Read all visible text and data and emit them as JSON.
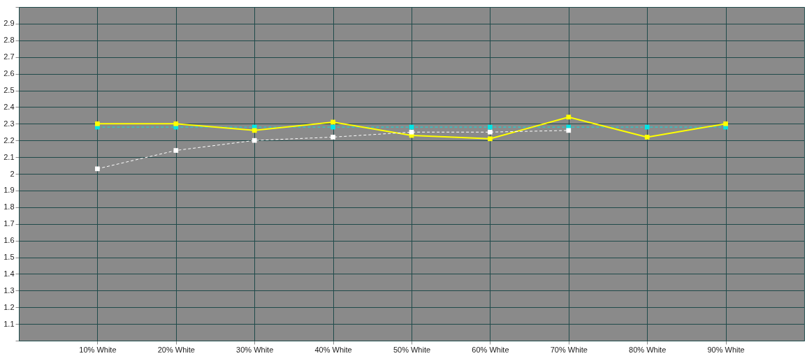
{
  "chart_data": {
    "type": "line",
    "x": [
      10,
      20,
      30,
      40,
      50,
      60,
      70,
      80,
      90
    ],
    "xlim": [
      0,
      100
    ],
    "xticks": [
      {
        "value": 10,
        "label": "10% White"
      },
      {
        "value": 20,
        "label": "20% White"
      },
      {
        "value": 30,
        "label": "30% White"
      },
      {
        "value": 40,
        "label": "40% White"
      },
      {
        "value": 50,
        "label": "50% White"
      },
      {
        "value": 60,
        "label": "60% White"
      },
      {
        "value": 70,
        "label": "70% White"
      },
      {
        "value": 80,
        "label": "80% White"
      },
      {
        "value": 90,
        "label": "90% White"
      }
    ],
    "ylim": [
      1.0,
      3.0
    ],
    "yticks": [
      {
        "value": 1.0,
        "label": null
      },
      1.1,
      1.2,
      1.3,
      1.4,
      1.5,
      1.6,
      1.7,
      1.8,
      1.9,
      2,
      2.1,
      2.2,
      2.3,
      2.4,
      2.5,
      2.6,
      2.7,
      2.8,
      2.9,
      {
        "value": 3.0,
        "label": null
      }
    ],
    "grid": true,
    "legend": false,
    "marker": "square",
    "series": [
      {
        "color": "#00e5e5",
        "line_style": "dashed",
        "values": [
          2.28,
          2.28,
          2.28,
          2.28,
          2.28,
          2.28,
          2.28,
          2.28,
          2.28
        ]
      },
      {
        "color": "#ffff00",
        "line_style": "solid",
        "values": [
          2.3,
          2.3,
          2.26,
          2.31,
          2.23,
          2.21,
          2.34,
          2.22,
          2.3
        ]
      },
      {
        "color": "#ffffff",
        "line_style": "dashed",
        "values": [
          2.03,
          2.14,
          2.2,
          2.22,
          2.25,
          2.25,
          2.26,
          null,
          null
        ]
      }
    ]
  }
}
